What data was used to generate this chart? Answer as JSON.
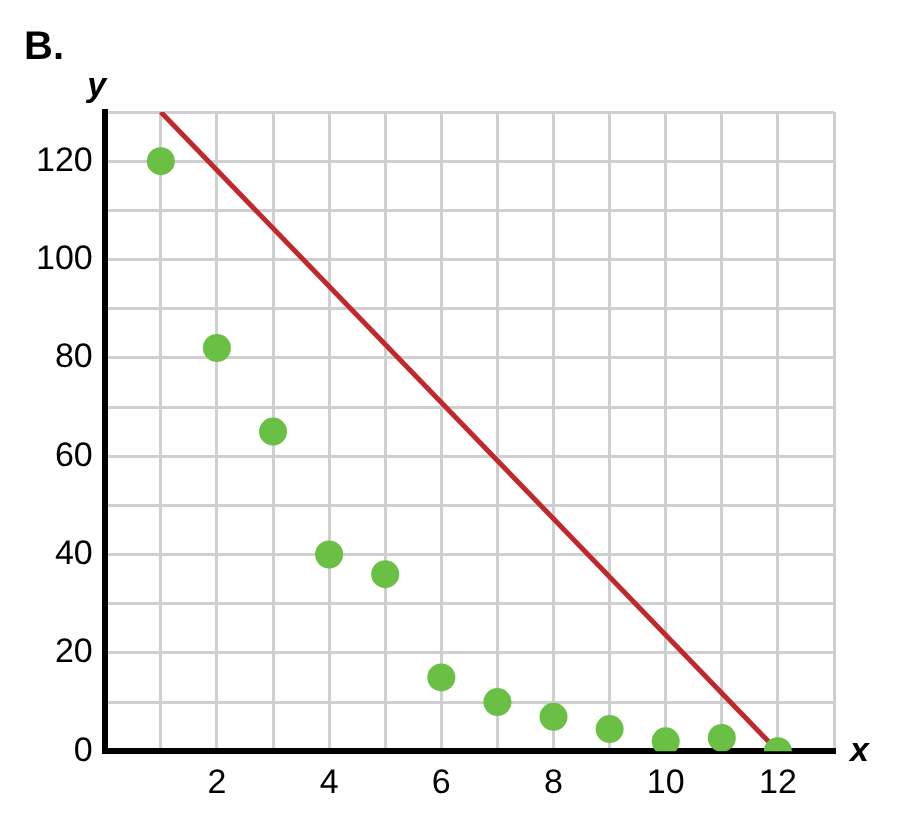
{
  "chart_data": {
    "type": "scatter",
    "title": "B.",
    "xlabel": "x",
    "ylabel": "y",
    "xlim": [
      0,
      13
    ],
    "ylim": [
      0,
      130
    ],
    "xticks": [
      {
        "value": 1,
        "label": null
      },
      2,
      {
        "value": 3,
        "label": null
      },
      4,
      {
        "value": 5,
        "label": null
      },
      6,
      {
        "value": 7,
        "label": null
      },
      8,
      {
        "value": 9,
        "label": null
      },
      10,
      {
        "value": 11,
        "label": null
      },
      12,
      {
        "value": 13,
        "label": null
      }
    ],
    "yticks": [
      0,
      {
        "value": 10,
        "label": null
      },
      20,
      {
        "value": 30,
        "label": null
      },
      40,
      {
        "value": 50,
        "label": null
      },
      60,
      {
        "value": 70,
        "label": null
      },
      80,
      {
        "value": 90,
        "label": null
      },
      100,
      {
        "value": 110,
        "label": null
      },
      120,
      {
        "value": 130,
        "label": null
      }
    ],
    "grid": true,
    "legend": false,
    "marker": "circle",
    "series": [
      {
        "color": "#6abf45",
        "x": [
          1,
          2,
          3,
          4,
          5,
          6,
          7,
          8,
          9,
          10,
          11,
          12
        ],
        "values": [
          120,
          82,
          65,
          40,
          36,
          15,
          10,
          7,
          4.5,
          2,
          2.7,
          0
        ]
      },
      {
        "type": "line",
        "color": "#c0282d",
        "x": [
          1,
          12
        ],
        "values": [
          130,
          0
        ],
        "marker": "none",
        "line_style": "solid"
      }
    ]
  }
}
